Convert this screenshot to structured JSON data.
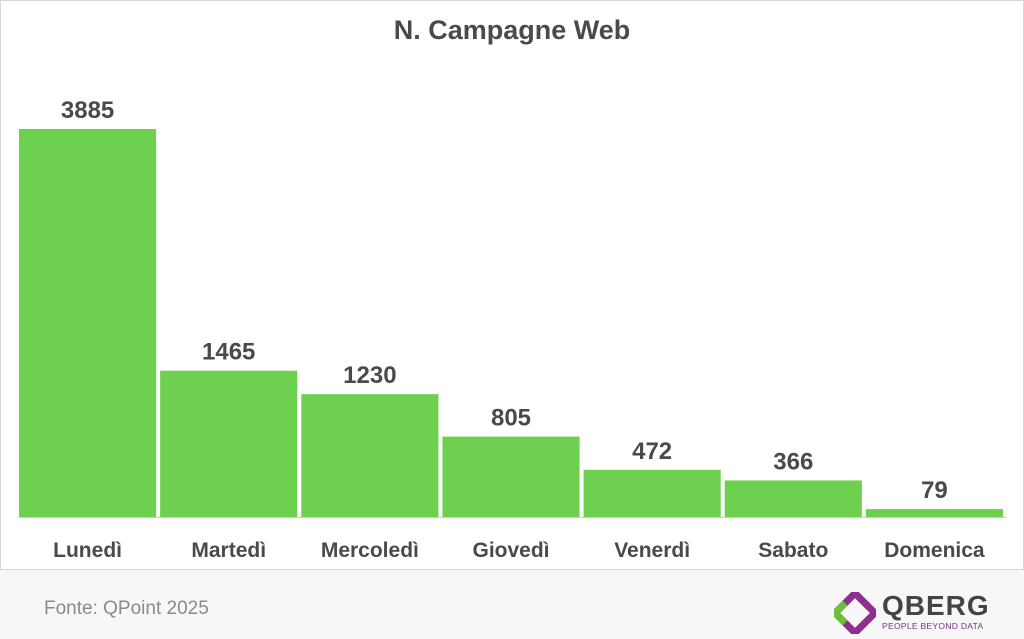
{
  "chart_data": {
    "type": "bar",
    "title": "N. Campagne Web",
    "categories": [
      "Lunedì",
      "Martedì",
      "Mercoledì",
      "Giovedì",
      "Venerdì",
      "Sabato",
      "Domenica"
    ],
    "values": [
      3885,
      1465,
      1230,
      805,
      472,
      366,
      79
    ],
    "ylim": [
      0,
      3885
    ],
    "grid": false,
    "colors": {
      "bar": "#6dd04e",
      "text": "#4a4a4a"
    }
  },
  "footer": {
    "source": "Fonte: QPoint 2025"
  },
  "logo": {
    "name": "QBERG",
    "tagline": "PEOPLE BEYOND DATA",
    "colors": {
      "purple": "#8e2f8f",
      "green": "#6dbf3b"
    }
  }
}
